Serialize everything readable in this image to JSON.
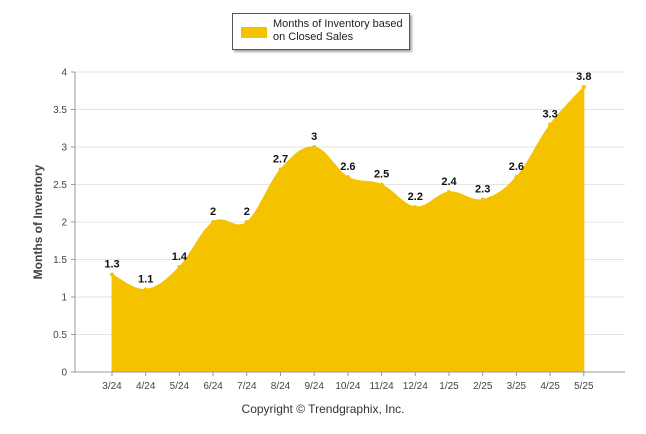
{
  "colors": {
    "fill": "#F5C200",
    "grid": "#e4e4e4",
    "axis": "#999999"
  },
  "legend": {
    "label_line1": "Months of Inventory based",
    "label_line2": "on Closed Sales"
  },
  "footer": {
    "copyright": "Copyright © Trendgraphix, Inc."
  },
  "chart_data": {
    "type": "area",
    "ylabel": "Months of Inventory",
    "ylim": [
      0,
      4
    ],
    "yticks": [
      "0",
      "0.5",
      "1",
      "1.5",
      "2",
      "2.5",
      "3",
      "3.5",
      "4"
    ],
    "grid": true,
    "legend_position": "top-center",
    "categories": [
      "3/24",
      "4/24",
      "5/24",
      "6/24",
      "7/24",
      "8/24",
      "9/24",
      "10/24",
      "11/24",
      "12/24",
      "1/25",
      "2/25",
      "3/25",
      "4/25",
      "5/25"
    ],
    "series": [
      {
        "name": "Months of Inventory based on Closed Sales",
        "values": [
          1.3,
          1.1,
          1.4,
          2,
          2,
          2.7,
          3,
          2.6,
          2.5,
          2.2,
          2.4,
          2.3,
          2.6,
          3.3,
          3.8
        ],
        "labels": [
          "1.3",
          "1.1",
          "1.4",
          "2",
          "2",
          "2.7",
          "3",
          "2.6",
          "2.5",
          "2.2",
          "2.4",
          "2.3",
          "2.6",
          "3.3",
          "3.8"
        ]
      }
    ]
  }
}
